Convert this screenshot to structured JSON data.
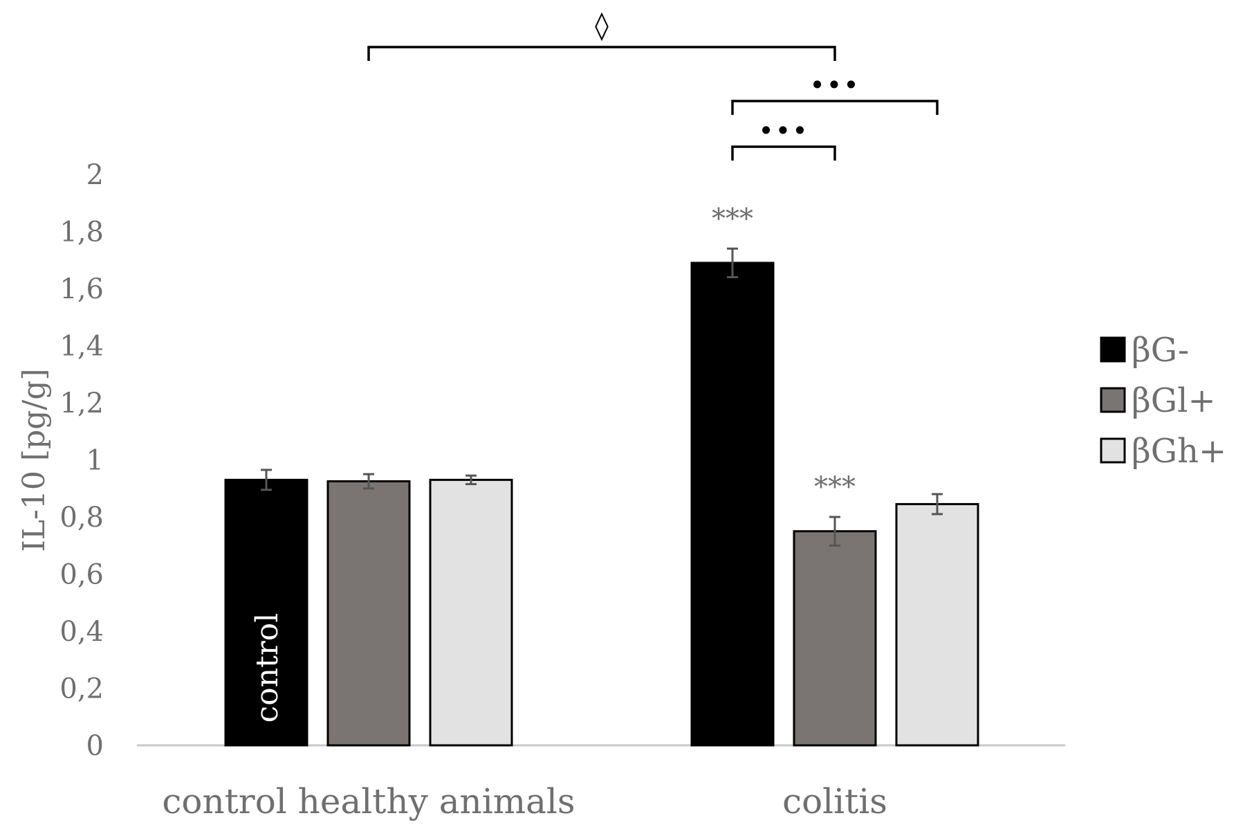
{
  "chart_data": {
    "type": "bar",
    "title": "",
    "xlabel": "",
    "ylabel": "IL-10 [pg/g]",
    "ylim": [
      0,
      2
    ],
    "yticks": [
      "0",
      "0,2",
      "0,4",
      "0,6",
      "0,8",
      "1",
      "1,2",
      "1,4",
      "1,6",
      "1,8",
      "2"
    ],
    "grid": false,
    "legend_position": "right",
    "categories": [
      "control healthy animals",
      "colitis"
    ],
    "series": [
      {
        "name": "βG-",
        "values": [
          0.93,
          1.69
        ],
        "errors": [
          0.035,
          0.05
        ],
        "color": "#000000"
      },
      {
        "name": "βGl+",
        "values": [
          0.925,
          0.75
        ],
        "errors": [
          0.025,
          0.05
        ],
        "color": "#7a7472"
      },
      {
        "name": "βGh+",
        "values": [
          0.93,
          0.845
        ],
        "errors": [
          0.015,
          0.035
        ],
        "color": "#e2e2e2"
      }
    ],
    "bar_annotations": [
      {
        "category": 0,
        "series": 0,
        "text": "control"
      },
      {
        "category": 1,
        "series": 0,
        "text": "***"
      },
      {
        "category": 1,
        "series": 1,
        "text": "***"
      }
    ],
    "comparison_brackets": [
      {
        "from": {
          "category": 0,
          "series": 1
        },
        "to": {
          "category": 1,
          "series": 1
        },
        "text": "◊"
      },
      {
        "from": {
          "category": 1,
          "series": 0
        },
        "to": {
          "category": 1,
          "series": 2
        },
        "text": "•••"
      },
      {
        "from": {
          "category": 1,
          "series": 0
        },
        "to": {
          "category": 1,
          "series": 1
        },
        "text": "•••"
      }
    ]
  }
}
